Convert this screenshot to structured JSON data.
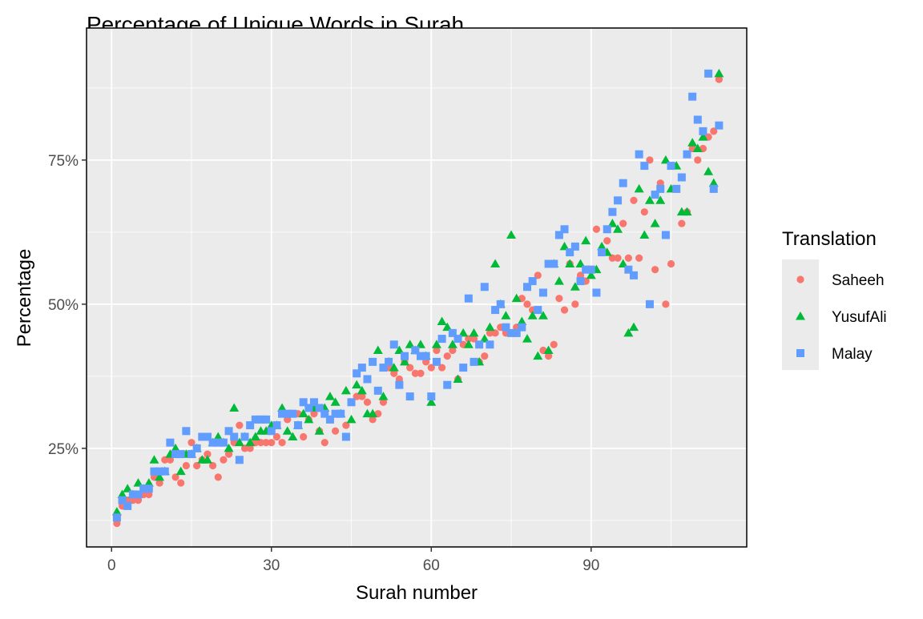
{
  "chart_data": {
    "type": "scatter",
    "title": "Percentage of Unique Words in Surah",
    "xlabel": "Surah number",
    "ylabel": "Percentage",
    "xlim": [
      -4.7,
      119.2
    ],
    "ylim": [
      7.9,
      97.9
    ],
    "x_ticks": [
      0,
      30,
      60,
      90
    ],
    "x_tick_labels": [
      "0",
      "30",
      "60",
      "90"
    ],
    "y_ticks": [
      25,
      50,
      75
    ],
    "y_tick_labels": [
      "25%",
      "50%",
      "75%"
    ],
    "grid": true,
    "legend": {
      "title": "Translation",
      "position": "right"
    },
    "x": "surah number 1..114",
    "series": [
      {
        "name": "Saheeh",
        "color": "#F8766D",
        "shape": "circle",
        "values": [
          12,
          15,
          16,
          16,
          16,
          17,
          17,
          20,
          19,
          23,
          23,
          20,
          19,
          22,
          26,
          22,
          23,
          24,
          22,
          20,
          23,
          24,
          26,
          29,
          25,
          25,
          26,
          26,
          26,
          26,
          27,
          26,
          30,
          31,
          31,
          27,
          30,
          31,
          28,
          26,
          30,
          28,
          31,
          29,
          33,
          34,
          34,
          33,
          30,
          31,
          33,
          39,
          38,
          37,
          40,
          39,
          38,
          38,
          40,
          39,
          42,
          39,
          41,
          42,
          37,
          43,
          44,
          44,
          40,
          41,
          45,
          45,
          46,
          45,
          45,
          46,
          51,
          50,
          49,
          55,
          42,
          41,
          43,
          51,
          49,
          57,
          50,
          55,
          54,
          56,
          63,
          59,
          61,
          58,
          58,
          64,
          58,
          68,
          58,
          66,
          75,
          56,
          71,
          50,
          57,
          70,
          64,
          66,
          77,
          75,
          77,
          79,
          80,
          89
        ]
      },
      {
        "name": "YusufAli",
        "color": "#00BA38",
        "shape": "triangle",
        "values": [
          14,
          17,
          18,
          17,
          19,
          18,
          19,
          23,
          20,
          21,
          24,
          25,
          21,
          24,
          24,
          25,
          23,
          23,
          26,
          27,
          26,
          25,
          32,
          26,
          27,
          26,
          27,
          28,
          28,
          29,
          29,
          32,
          28,
          27,
          29,
          31,
          30,
          32,
          28,
          32,
          34,
          33,
          31,
          35,
          30,
          36,
          35,
          31,
          31,
          42,
          34,
          40,
          39,
          42,
          40,
          43,
          42,
          43,
          41,
          33,
          43,
          47,
          46,
          43,
          37,
          45,
          43,
          45,
          40,
          44,
          46,
          57,
          50,
          48,
          62,
          51,
          47,
          44,
          48,
          41,
          48,
          42,
          57,
          54,
          60,
          57,
          53,
          57,
          61,
          55,
          56,
          60,
          59,
          64,
          63,
          57,
          45,
          46,
          70,
          62,
          68,
          64,
          68,
          75,
          70,
          74,
          66,
          66,
          78,
          77,
          79,
          73,
          71,
          90
        ]
      },
      {
        "name": "Malay",
        "color": "#619CFF",
        "shape": "square",
        "values": [
          13,
          16,
          15,
          17,
          17,
          18,
          18,
          21,
          21,
          21,
          26,
          24,
          24,
          28,
          24,
          25,
          27,
          27,
          26,
          26,
          26,
          28,
          27,
          23,
          27,
          29,
          30,
          30,
          30,
          28,
          29,
          31,
          31,
          31,
          29,
          33,
          32,
          33,
          32,
          31,
          30,
          31,
          31,
          27,
          33,
          38,
          39,
          37,
          40,
          35,
          39,
          40,
          43,
          36,
          41,
          34,
          42,
          41,
          41,
          34,
          40,
          44,
          36,
          45,
          44,
          39,
          51,
          40,
          43,
          53,
          43,
          49,
          50,
          46,
          45,
          45,
          46,
          53,
          54,
          49,
          52,
          57,
          57,
          62,
          63,
          59,
          60,
          54,
          56,
          56,
          52,
          59,
          63,
          66,
          68,
          71,
          56,
          55,
          76,
          74,
          50,
          69,
          70,
          62,
          74,
          70,
          72,
          76,
          86,
          82,
          80,
          90,
          70,
          81
        ]
      }
    ]
  }
}
